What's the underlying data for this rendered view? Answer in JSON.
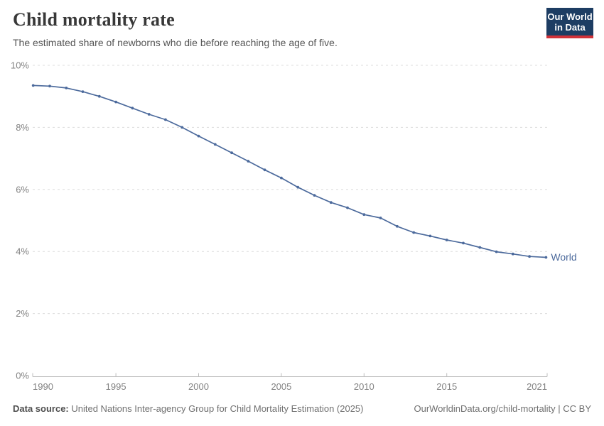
{
  "header": {
    "title": "Child mortality rate",
    "subtitle": "The estimated share of newborns who die before reaching the age of five."
  },
  "logo": {
    "line1": "Our World",
    "line2": "in Data",
    "background": "#1d3d63",
    "accent": "#d13239"
  },
  "chart_data": {
    "type": "line",
    "title": "Child mortality rate",
    "xlabel": "",
    "ylabel": "",
    "x": [
      1990,
      1991,
      1992,
      1993,
      1994,
      1995,
      1996,
      1997,
      1998,
      1999,
      2000,
      2001,
      2002,
      2003,
      2004,
      2005,
      2006,
      2007,
      2008,
      2009,
      2010,
      2011,
      2012,
      2013,
      2014,
      2015,
      2016,
      2017,
      2018,
      2019,
      2020,
      2021
    ],
    "series": [
      {
        "name": "World",
        "color": "#4c6a9c",
        "values": [
          9.35,
          9.33,
          9.27,
          9.15,
          9.0,
          8.82,
          8.62,
          8.42,
          8.25,
          8.0,
          7.72,
          7.45,
          7.18,
          6.91,
          6.63,
          6.37,
          6.07,
          5.81,
          5.58,
          5.41,
          5.19,
          5.08,
          4.81,
          4.61,
          4.5,
          4.37,
          4.27,
          4.13,
          3.99,
          3.92,
          3.84,
          3.81
        ]
      }
    ],
    "xlim": [
      1990,
      2021
    ],
    "ylim": [
      0,
      10
    ],
    "yticks": [
      0,
      2,
      4,
      6,
      8,
      10
    ],
    "ytick_labels": [
      "0%",
      "2%",
      "4%",
      "6%",
      "8%",
      "10%"
    ],
    "xticks": [
      1990,
      1995,
      2000,
      2005,
      2010,
      2015,
      2021
    ],
    "xtick_labels": [
      "1990",
      "1995",
      "2000",
      "2005",
      "2010",
      "2015",
      "2021"
    ],
    "grid": "horizontal-dashed",
    "legend_position": "end-of-line",
    "marker": "dot"
  },
  "footer": {
    "source_label": "Data source:",
    "source_text": " United Nations Inter-agency Group for Child Mortality Estimation (2025)",
    "link_text": "OurWorldinData.org/child-mortality | CC BY"
  },
  "colors": {
    "line": "#4c6a9c",
    "grid": "#dcdcdc",
    "axis": "#bdbdbd",
    "tick_label": "#828282",
    "title": "#383838",
    "subtitle": "#555555"
  }
}
